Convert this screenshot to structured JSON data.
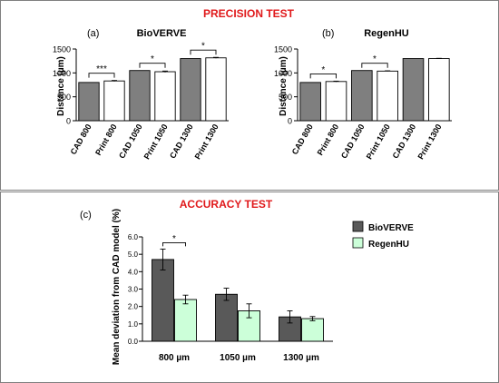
{
  "figure": {
    "precision_title": "PRECISION TEST",
    "accuracy_title": "ACCURACY TEST",
    "title_color": "#e0191b",
    "frame_color": "#7f7f7f",
    "gray_bar": "#7f7f7f",
    "white_bar": "#ffffff",
    "bioverve_color": "#595959",
    "regenhu_color": "#ccffd9"
  },
  "chart_data": [
    {
      "type": "bar",
      "panel": "(a)",
      "title": "BioVERVE",
      "ylabel": "Distance (µm)",
      "ylim": [
        0,
        1500
      ],
      "yticks": [
        0,
        500,
        1000,
        1500
      ],
      "categories": [
        "CAD 800",
        "Print 800",
        "CAD 1050",
        "Print 1050",
        "CAD 1300",
        "Print 1300"
      ],
      "values": [
        800,
        832,
        1050,
        1025,
        1300,
        1315
      ],
      "errors": [
        0,
        10,
        0,
        14,
        0,
        10
      ],
      "bar_fill": [
        "gray",
        "white",
        "gray",
        "white",
        "gray",
        "white"
      ],
      "significance": [
        {
          "from": 0,
          "to": 1,
          "label": "***"
        },
        {
          "from": 2,
          "to": 3,
          "label": "*"
        },
        {
          "from": 4,
          "to": 5,
          "label": "*"
        }
      ]
    },
    {
      "type": "bar",
      "panel": "(b)",
      "title": "RegenHU",
      "ylabel": "Distance (µm)",
      "ylim": [
        0,
        1500
      ],
      "yticks": [
        0,
        500,
        1000,
        1500
      ],
      "categories": [
        "CAD 800",
        "Print 800",
        "CAD 1050",
        "Print 1050",
        "CAD 1300",
        "Print 1300"
      ],
      "values": [
        800,
        820,
        1050,
        1038,
        1300,
        1300
      ],
      "errors": [
        0,
        8,
        0,
        6,
        0,
        5
      ],
      "bar_fill": [
        "gray",
        "white",
        "gray",
        "white",
        "gray",
        "white"
      ],
      "significance": [
        {
          "from": 0,
          "to": 1,
          "label": "*"
        },
        {
          "from": 2,
          "to": 3,
          "label": "*"
        }
      ]
    },
    {
      "type": "bar",
      "panel": "(c)",
      "ylabel": "Mean deviation from CAD model (%)",
      "ylim": [
        0,
        6
      ],
      "yticks": [
        "0.0",
        "1.0",
        "2.0",
        "3.0",
        "4.0",
        "5.0",
        "6.0"
      ],
      "categories": [
        "800 µm",
        "1050 µm",
        "1300 µm"
      ],
      "legend_position": "right",
      "series": [
        {
          "name": "BioVERVE",
          "values": [
            4.7,
            2.7,
            1.4
          ],
          "errors": [
            0.6,
            0.35,
            0.35
          ]
        },
        {
          "name": "RegenHU",
          "values": [
            2.4,
            1.75,
            1.3
          ],
          "errors": [
            0.25,
            0.4,
            0.12
          ]
        }
      ],
      "significance": [
        {
          "group": 0,
          "label": "*"
        }
      ]
    }
  ]
}
